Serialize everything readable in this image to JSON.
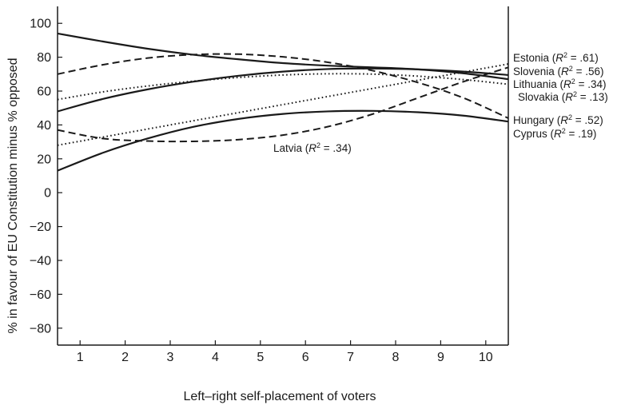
{
  "chart_data": {
    "type": "line",
    "xlabel": "Left–right self-placement of voters",
    "ylabel": "% in favour of EU Constitution minus % opposed",
    "xlim": [
      0.5,
      10.5
    ],
    "ylim": [
      -90,
      110
    ],
    "x_ticks": [
      "1",
      "2",
      "3",
      "4",
      "5",
      "6",
      "7",
      "8",
      "9",
      "10"
    ],
    "y_ticks": [
      "100",
      "80",
      "60",
      "40",
      "20",
      "0",
      "−20",
      "−40",
      "−60",
      "−80"
    ],
    "grid": false,
    "series": [
      {
        "name": "Estonia",
        "r2": ".61",
        "style": "solid",
        "x": [
          0.5,
          1.5,
          2.5,
          3.5,
          4.5,
          5.5,
          6.5,
          7.5,
          8.5,
          9.5,
          10.5
        ],
        "y": [
          94,
          89.3,
          85,
          81.5,
          78.8,
          76.5,
          75,
          74,
          72.8,
          70.5,
          67
        ]
      },
      {
        "name": "Slovenia",
        "r2": ".56",
        "style": "solid",
        "x": [
          0.5,
          1.5,
          2.5,
          3.5,
          4.5,
          5.5,
          6.5,
          7.5,
          8.5,
          9.5,
          10.5
        ],
        "y": [
          48,
          55.3,
          61,
          65.5,
          69,
          71.5,
          73,
          73.3,
          72.8,
          71.5,
          69.5
        ]
      },
      {
        "name": "Lithuania",
        "r2": ".34",
        "style": "dotted",
        "x": [
          0.5,
          1.5,
          2.5,
          3.5,
          4.5,
          5.5,
          6.5,
          7.5,
          8.5,
          9.5,
          10.5
        ],
        "y": [
          55,
          59.5,
          63,
          65.8,
          68,
          69.5,
          70.2,
          70,
          68.8,
          66.8,
          64
        ]
      },
      {
        "name": "Slovakia",
        "r2": ".13",
        "style": "dotted",
        "x": [
          0.5,
          1.5,
          2.5,
          3.5,
          4.5,
          5.5,
          6.5,
          7.5,
          8.5,
          9.5,
          10.5
        ],
        "y": [
          28,
          32.8,
          37.6,
          42.4,
          47.2,
          52,
          56.8,
          61.6,
          66.4,
          71.2,
          76
        ]
      },
      {
        "name": "Hungary",
        "r2": ".52",
        "style": "dashed",
        "x": [
          0.5,
          1.5,
          2.5,
          3.5,
          4.5,
          5.5,
          6.5,
          7.5,
          8.5,
          9.5,
          10.5
        ],
        "y": [
          70,
          75.5,
          79.5,
          81.5,
          81.8,
          80.2,
          77,
          72,
          65,
          56,
          44
        ]
      },
      {
        "name": "Cyprus",
        "r2": ".19",
        "style": "solid",
        "x": [
          0.5,
          1.5,
          2.5,
          3.5,
          4.5,
          5.5,
          6.5,
          7.5,
          8.5,
          9.5,
          10.5
        ],
        "y": [
          13,
          23.5,
          32,
          38.8,
          43.5,
          46.5,
          48,
          48.3,
          47.5,
          45.5,
          42
        ]
      },
      {
        "name": "Latvia",
        "r2": ".34",
        "style": "dashed",
        "x": [
          0.5,
          1.5,
          2.5,
          3.5,
          4.5,
          5.5,
          6.5,
          7.5,
          8.5,
          9.5,
          10.5
        ],
        "y": [
          37,
          32,
          30.5,
          30.3,
          31.3,
          34,
          39,
          46.5,
          56,
          65.5,
          74
        ]
      }
    ]
  }
}
